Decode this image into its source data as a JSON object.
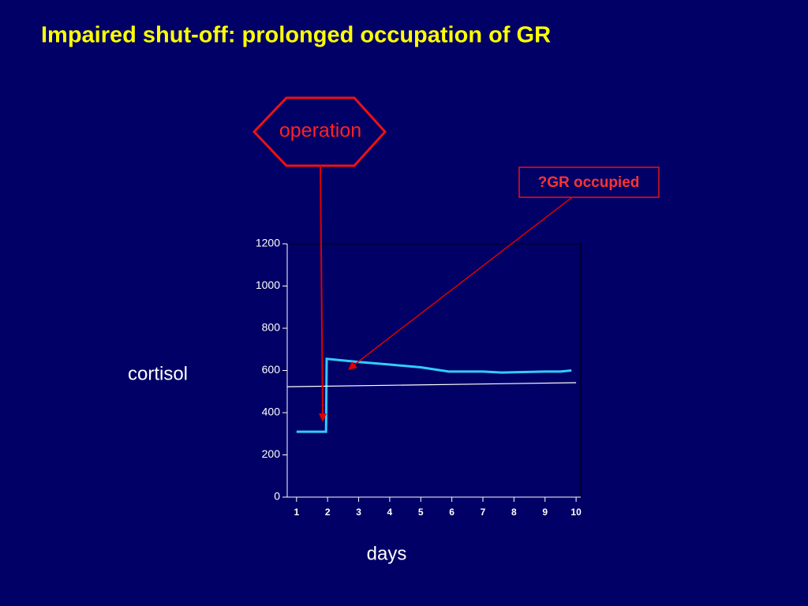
{
  "chart_data": {
    "type": "line",
    "title": "Impaired shut-off: prolonged occupation of GR",
    "ylabel": "cortisol",
    "xlabel": "days",
    "annotations": [
      "operation",
      "?GR occupied"
    ],
    "xlim": [
      0.7,
      10.15
    ],
    "xticks": [
      1,
      2,
      3,
      4,
      5,
      6,
      7,
      8,
      9,
      10
    ],
    "ylim": [
      0,
      1200
    ],
    "yticks": [
      0,
      200,
      400,
      600,
      800,
      1000,
      1200
    ],
    "series": [
      {
        "color": "#33ccff",
        "x": [
          1,
          1.95,
          1.97,
          3,
          4,
          5,
          5.9,
          7,
          7.6,
          9,
          9.5,
          9.85
        ],
        "values": [
          310,
          310,
          655,
          640,
          628,
          615,
          595,
          595,
          590,
          595,
          595,
          600
        ]
      },
      {
        "color": "#ffffff",
        "x": [
          0.7,
          10
        ],
        "values": [
          523,
          542
        ]
      }
    ]
  }
}
